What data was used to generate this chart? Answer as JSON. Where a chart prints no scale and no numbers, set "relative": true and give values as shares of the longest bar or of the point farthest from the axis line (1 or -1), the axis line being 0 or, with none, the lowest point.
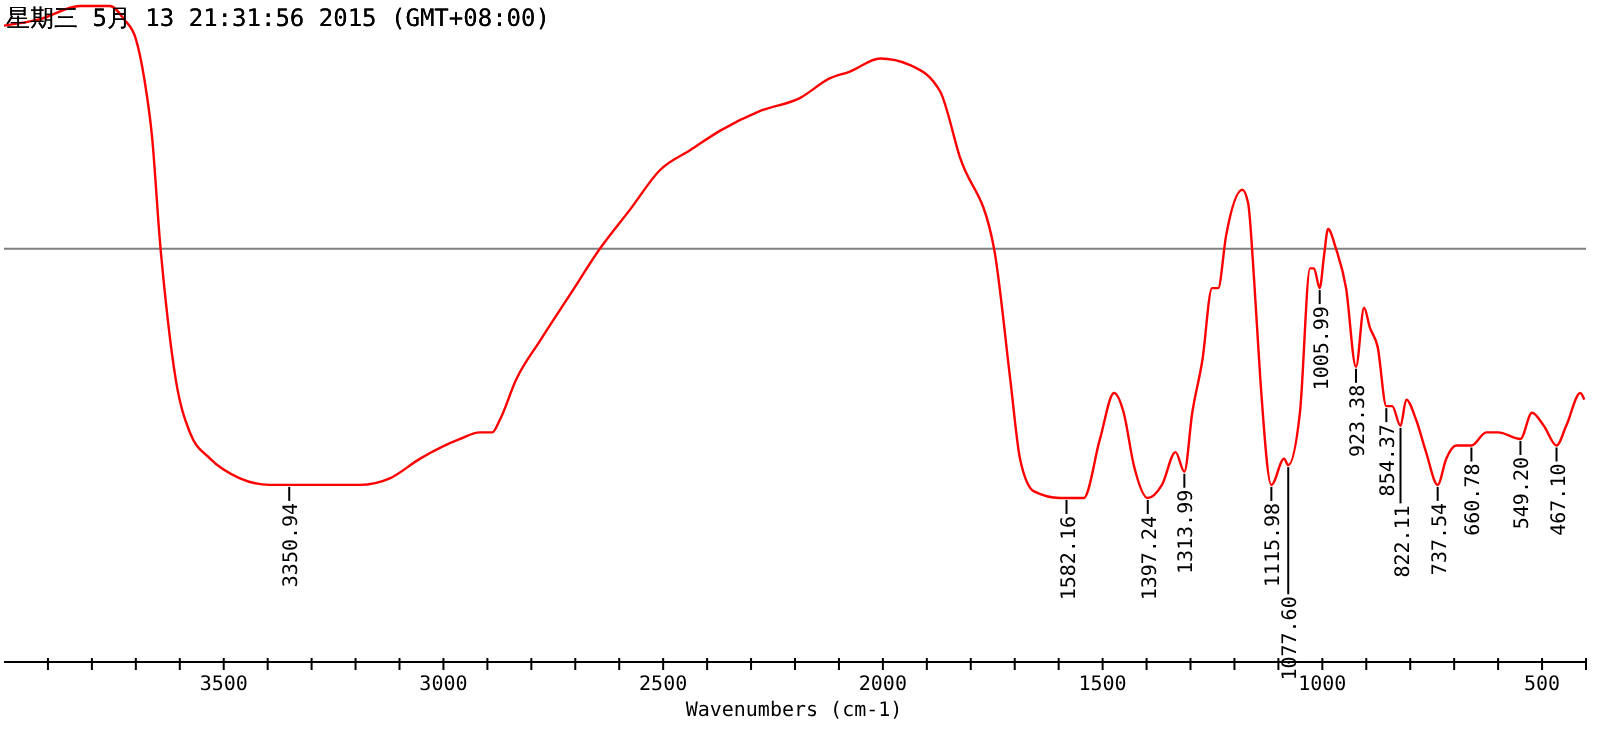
{
  "chart_data": {
    "type": "line",
    "title": "星期三 5月 13 21:31:56 2015 (GMT+08:00)",
    "xlabel": "Wavenumbers (cm-1)",
    "relative": true,
    "xlim": [
      4000,
      400
    ],
    "xticks": [
      {
        "value": 3900,
        "label": null
      },
      {
        "value": 3800,
        "label": null
      },
      {
        "value": 3700,
        "label": null
      },
      {
        "value": 3600,
        "label": null
      },
      3500,
      {
        "value": 3400,
        "label": null
      },
      {
        "value": 3300,
        "label": null
      },
      {
        "value": 3200,
        "label": null
      },
      {
        "value": 3100,
        "label": null
      },
      3000,
      {
        "value": 2900,
        "label": null
      },
      {
        "value": 2800,
        "label": null
      },
      {
        "value": 2700,
        "label": null
      },
      {
        "value": 2600,
        "label": null
      },
      2500,
      {
        "value": 2400,
        "label": null
      },
      {
        "value": 2300,
        "label": null
      },
      {
        "value": 2200,
        "label": null
      },
      {
        "value": 2100,
        "label": null
      },
      2000,
      {
        "value": 1900,
        "label": null
      },
      {
        "value": 1800,
        "label": null
      },
      {
        "value": 1700,
        "label": null
      },
      {
        "value": 1600,
        "label": null
      },
      1500,
      {
        "value": 1400,
        "label": null
      },
      {
        "value": 1300,
        "label": null
      },
      {
        "value": 1200,
        "label": null
      },
      {
        "value": 1100,
        "label": null
      },
      1000,
      {
        "value": 900,
        "label": null
      },
      {
        "value": 800,
        "label": null
      },
      {
        "value": 700,
        "label": null
      },
      {
        "value": 600,
        "label": null
      },
      500,
      {
        "value": 400,
        "label": null
      }
    ],
    "x": [
      4000,
      3918,
      3827,
      3759,
      3727,
      3700,
      3681,
      3663,
      3645,
      3627,
      3609,
      3577,
      3531,
      3463,
      3395,
      3350.94,
      3258,
      3190,
      3122,
      3053,
      2962,
      2917,
      2889,
      2871,
      2835,
      2780,
      2712,
      2644,
      2575,
      2507,
      2439,
      2370,
      2279,
      2188,
      2120,
      2075,
      2006,
      1938,
      1870,
      1825,
      1747,
      1710,
      1688,
      1656,
      1597,
      1582.16,
      1543,
      1506,
      1474,
      1452,
      1429,
      1397.24,
      1365,
      1334,
      1313.99,
      1296,
      1273,
      1251,
      1237,
      1219,
      1182,
      1169,
      1155,
      1141,
      1115.98,
      1087,
      1077.6,
      1051,
      1028,
      1019,
      1005.99,
      996,
      987,
      969,
      946,
      923.38,
      905,
      892,
      874,
      854.37,
      841,
      822.11,
      809,
      787,
      764,
      737.54,
      718,
      695,
      660.78,
      627,
      600,
      549.2,
      523,
      496,
      467.1,
      445,
      413,
      404
    ],
    "series": [
      {
        "color": "#ff0000",
        "values": [
          0.97,
          0.98,
          1.0,
          1.0,
          0.98,
          0.95,
          0.89,
          0.8,
          0.64,
          0.52,
          0.43,
          0.35,
          0.31,
          0.28,
          0.27,
          0.27,
          0.27,
          0.27,
          0.28,
          0.31,
          0.34,
          0.35,
          0.35,
          0.37,
          0.43,
          0.49,
          0.56,
          0.63,
          0.69,
          0.75,
          0.78,
          0.81,
          0.84,
          0.86,
          0.89,
          0.9,
          0.92,
          0.91,
          0.87,
          0.77,
          0.63,
          0.43,
          0.31,
          0.26,
          0.25,
          0.25,
          0.25,
          0.34,
          0.41,
          0.38,
          0.3,
          0.25,
          0.27,
          0.32,
          0.29,
          0.38,
          0.46,
          0.57,
          0.57,
          0.65,
          0.72,
          0.7,
          0.58,
          0.43,
          0.27,
          0.31,
          0.3,
          0.38,
          0.6,
          0.6,
          0.57,
          0.62,
          0.66,
          0.63,
          0.57,
          0.45,
          0.54,
          0.51,
          0.48,
          0.39,
          0.39,
          0.36,
          0.4,
          0.37,
          0.32,
          0.27,
          0.31,
          0.33,
          0.33,
          0.35,
          0.35,
          0.34,
          0.38,
          0.36,
          0.33,
          0.36,
          0.41,
          0.4
        ]
      }
    ],
    "ref_lines": [
      {
        "axis": "y",
        "value": 0.63,
        "color": "#808080"
      }
    ],
    "annotations": [
      {
        "text": "3350.94",
        "x": 3350.94,
        "y": 0.27
      },
      {
        "text": "1582.16",
        "x": 1582.16,
        "y": 0.25
      },
      {
        "text": "1397.24",
        "x": 1397.24,
        "y": 0.25
      },
      {
        "text": "1313.99",
        "x": 1313.99,
        "y": 0.29
      },
      {
        "text": "1115.98",
        "x": 1115.98,
        "y": 0.27
      },
      {
        "text": "1077.60",
        "x": 1077.6,
        "y": 0.3
      },
      {
        "text": "1005.99",
        "x": 1005.99,
        "y": 0.57
      },
      {
        "text": "923.38",
        "x": 923.38,
        "y": 0.45
      },
      {
        "text": "854.37",
        "x": 854.37,
        "y": 0.39
      },
      {
        "text": "822.11",
        "x": 822.11,
        "y": 0.36
      },
      {
        "text": "737.54",
        "x": 737.54,
        "y": 0.27
      },
      {
        "text": "660.78",
        "x": 660.78,
        "y": 0.33
      },
      {
        "text": "549.20",
        "x": 549.2,
        "y": 0.34
      },
      {
        "text": "467.10",
        "x": 467.1,
        "y": 0.33
      }
    ]
  }
}
